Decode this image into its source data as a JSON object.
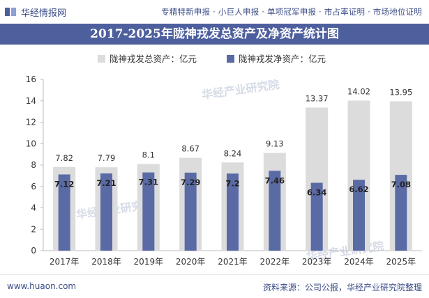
{
  "header": {
    "site_name": "华经情报网",
    "links": "专精特新申报 · 小巨人申报 · 单项冠军申报 · 市占率证明 · 市场地位证明"
  },
  "footer": {
    "url": "www.huaon.com",
    "source": "资料来源：公司公报，华经产业研究院整理"
  },
  "watermark": "华经产业研究院",
  "colors": {
    "title_bg": "#4e5f9e",
    "total_bar": "#dcdcdc",
    "net_bar": "#5a6aa5"
  },
  "chart_data": {
    "type": "bar",
    "title": "2017-2025年陇神戎发总资产及净资产统计图",
    "categories": [
      "2017年",
      "2018年",
      "2019年",
      "2020年",
      "2021年",
      "2022年",
      "2023年",
      "2024年",
      "2025年"
    ],
    "series": [
      {
        "name": "陇神戎发总资产：亿元",
        "values": [
          7.82,
          7.79,
          8.1,
          8.67,
          8.24,
          9.13,
          13.37,
          14.02,
          13.95
        ]
      },
      {
        "name": "陇神戎发净资产：亿元",
        "values": [
          7.12,
          7.21,
          7.31,
          7.29,
          7.2,
          7.46,
          6.34,
          6.62,
          7.08
        ]
      }
    ],
    "ylim": [
      0,
      16
    ],
    "yticks": [
      0,
      2,
      4,
      6,
      8,
      10,
      12,
      14,
      16
    ],
    "legend": "top-center",
    "grid": false,
    "xlabel": "",
    "ylabel": ""
  }
}
